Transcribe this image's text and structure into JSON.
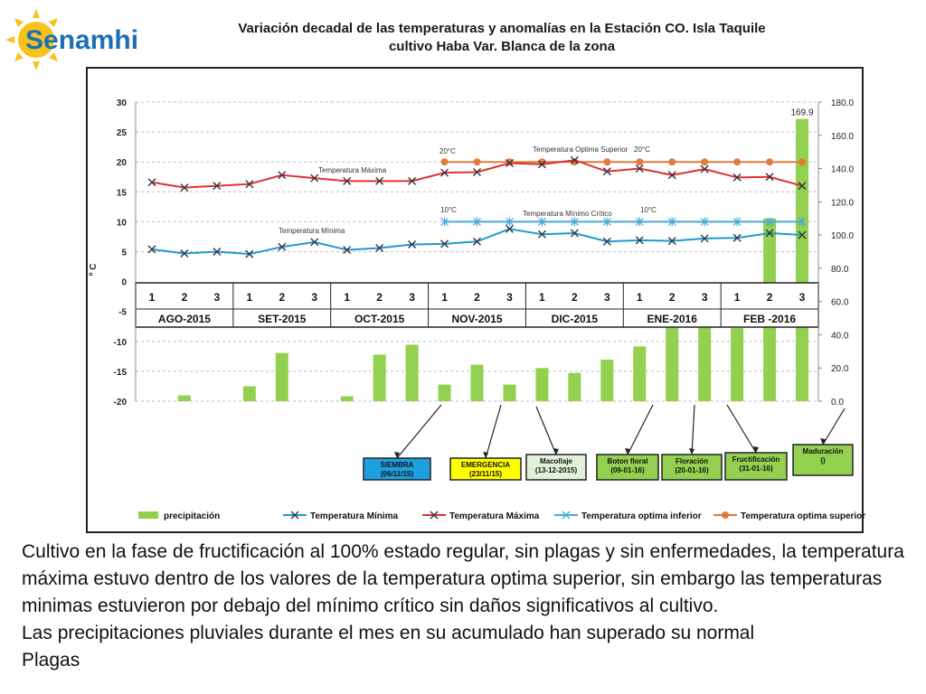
{
  "header": {
    "logo_text": "Senamhi",
    "title_line1": "Variación decadal de las temperaturas y anomalías en la Estación CO. Isla Taquile",
    "title_line2": "cultivo Haba Var. Blanca de la zona"
  },
  "chart_data": {
    "type": "bar-line",
    "title": "Variación decadal de las temperaturas y anomalías en la Estación CO. Isla Taquile cultivo Haba Var. Blanca de la zona",
    "ylabel_left": "º C",
    "ylim_left": [
      -20,
      30
    ],
    "yticks_left": [
      "30",
      "25",
      "20",
      "15",
      "10",
      "5",
      "0",
      "-5",
      "-10",
      "-15",
      "-20"
    ],
    "ylim_right": [
      0,
      180
    ],
    "yticks_right": [
      "180.0",
      "160.0",
      "140.0",
      "120.0",
      "100.0",
      "80.0",
      "60.0",
      "40.0",
      "20.0",
      "0.0"
    ],
    "grid": "horizontal dashed",
    "legend_position": "bottom",
    "months": [
      "AGO-2015",
      "SET-2015",
      "OCT-2015",
      "NOV-2015",
      "DIC-2015",
      "ENE-2016",
      "FEB -2016"
    ],
    "dekads": [
      "1",
      "2",
      "3"
    ],
    "series": [
      {
        "name": "precipitación",
        "type": "bar",
        "axis": "right",
        "color": "#92d050",
        "values": [
          0,
          3.5,
          0,
          9,
          29,
          0,
          3,
          28,
          34,
          10,
          22,
          10,
          20,
          17,
          25,
          33,
          60,
          48,
          44,
          110,
          169.9
        ],
        "value_label": "169.9"
      },
      {
        "name": "Temperatura Mínima",
        "type": "line",
        "axis": "left",
        "color": "#1f9bc9",
        "values": [
          5.4,
          4.7,
          5.0,
          4.6,
          5.8,
          6.6,
          5.3,
          5.6,
          6.2,
          6.3,
          6.7,
          8.8,
          7.9,
          8.1,
          6.7,
          6.9,
          6.8,
          7.2,
          7.3,
          8.1,
          7.8
        ]
      },
      {
        "name": "Temperatura Máxima",
        "type": "line",
        "axis": "left",
        "color": "#e03030",
        "values": [
          16.6,
          15.7,
          16.0,
          16.3,
          17.8,
          17.3,
          16.8,
          16.8,
          16.8,
          18.2,
          18.3,
          19.8,
          19.6,
          20.3,
          18.4,
          18.9,
          17.8,
          18.8,
          17.4,
          17.5,
          16.0
        ]
      },
      {
        "name": "Temperatura optima inferior",
        "type": "line",
        "axis": "left",
        "color": "#48a8d8",
        "start_index": 9,
        "values": [
          10,
          10,
          10,
          10,
          10,
          10,
          10,
          10,
          10,
          10,
          10,
          10
        ]
      },
      {
        "name": "Temperatura optima superior",
        "type": "line",
        "axis": "left",
        "color": "#e07b39",
        "start_index": 9,
        "values": [
          20,
          20,
          20,
          20,
          20,
          20,
          20,
          20,
          20,
          20,
          20,
          20
        ]
      }
    ],
    "annotations": {
      "tmax_label": "Temperatura Máxima",
      "tmin_label": "Temperatura Mínima",
      "opt_sup_label": "Temperatura Optima Superior",
      "opt_inf_label": "Temperatura Mínimo Crítico",
      "deg20_a": "20°C",
      "deg20_b": "20°C",
      "deg10_a": "10°C",
      "deg10_b": "10°C"
    },
    "stages": [
      {
        "name": "SIEMBRA",
        "date": "(06/11/15)",
        "color": "#1ea0e0"
      },
      {
        "name": "EMERGENCIA",
        "date": "(23/11/15)",
        "color": "#ffff00"
      },
      {
        "name": "Macollaje",
        "date": "(13-12-2015)",
        "color": "#e2f0d9"
      },
      {
        "name": "Boton floral",
        "date": "(09-01-16)",
        "color": "#92d050"
      },
      {
        "name": "Floración",
        "date": "(20-01-16)",
        "color": "#92d050"
      },
      {
        "name": "Fructificación",
        "date": "(31-01-16)",
        "color": "#92d050"
      },
      {
        "name": "Maduración",
        "date": "()",
        "color": "#92d050"
      }
    ]
  },
  "description": {
    "paragraph1": "Cultivo en la fase de fructificación al 100% estado regular, sin plagas y sin enfermedades, la temperatura máxima estuvo dentro de los valores de la temperatura optima superior, sin embargo las temperaturas minimas estuvieron por debajo del mínimo crítico sin daños significativos al cultivo.",
    "paragraph2": "Las precipitaciones pluviales durante el mes en su acumulado han superado su normal",
    "paragraph3": "Plagas"
  }
}
